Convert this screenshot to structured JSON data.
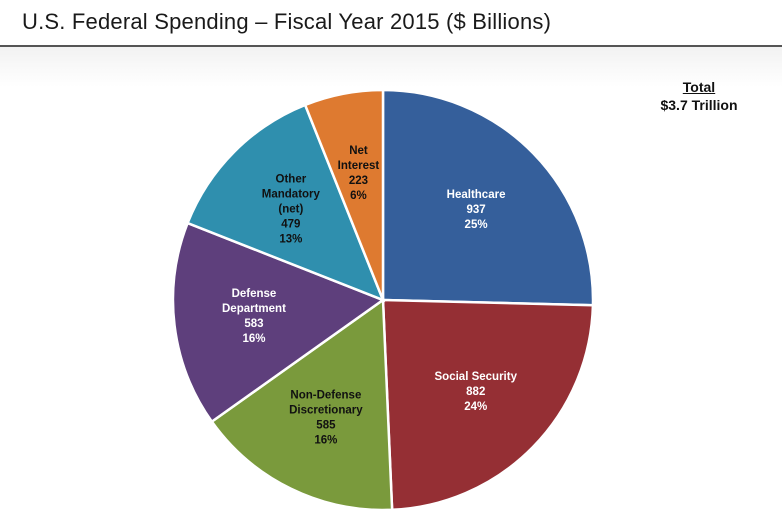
{
  "header": {
    "title": "U.S. Federal Spending – Fiscal Year 2015 ($ Billions)"
  },
  "total": {
    "label": "Total",
    "value": "$3.7 Trillion"
  },
  "chart_data": {
    "type": "pie",
    "title": "U.S. Federal Spending – Fiscal Year 2015 ($ Billions)",
    "unit": "$ Billions",
    "slices": [
      {
        "label": [
          "Healthcare"
        ],
        "value": 937,
        "percent": "25%",
        "color": "#355f9b",
        "text_color": "#ffffff"
      },
      {
        "label": [
          "Social Security"
        ],
        "value": 882,
        "percent": "24%",
        "color": "#952f34",
        "text_color": "#ffffff"
      },
      {
        "label": [
          "Non-Defense",
          "Discretionary"
        ],
        "value": 585,
        "percent": "16%",
        "color": "#7a9a3c",
        "text_color": "#111111"
      },
      {
        "label": [
          "Defense",
          "Department"
        ],
        "value": 583,
        "percent": "16%",
        "color": "#5e3f7c",
        "text_color": "#ffffff"
      },
      {
        "label": [
          "Other",
          "Mandatory",
          "(net)"
        ],
        "value": 479,
        "percent": "13%",
        "color": "#2f8fae",
        "text_color": "#111111"
      },
      {
        "label": [
          "Net",
          "Interest"
        ],
        "value": 223,
        "percent": "6%",
        "color": "#de7a30",
        "text_color": "#111111"
      }
    ]
  }
}
